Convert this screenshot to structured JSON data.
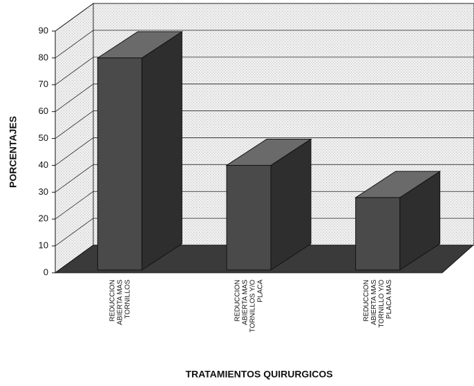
{
  "chart_data": {
    "type": "bar3d",
    "categories": [
      "REDUCCION\nABIERTA MAS\nTORNILLOS",
      "REDUCCION\nABIERTA MAS\nTORNILLOS Y/O\nPLACA",
      "REDUCCION\nABIERTA MAS\nTORNILLO Y/O\nPLACA MAS"
    ],
    "values": [
      80,
      40,
      28
    ],
    "color": "#4a4a4a",
    "ylim": [
      0,
      90
    ],
    "yticks": [
      0,
      10,
      20,
      30,
      40,
      50,
      60,
      70,
      80,
      90
    ],
    "grid": true,
    "y_label": "PORCENTAJES",
    "x_label": "TRATAMIENTOS QUIRURGICOS"
  }
}
